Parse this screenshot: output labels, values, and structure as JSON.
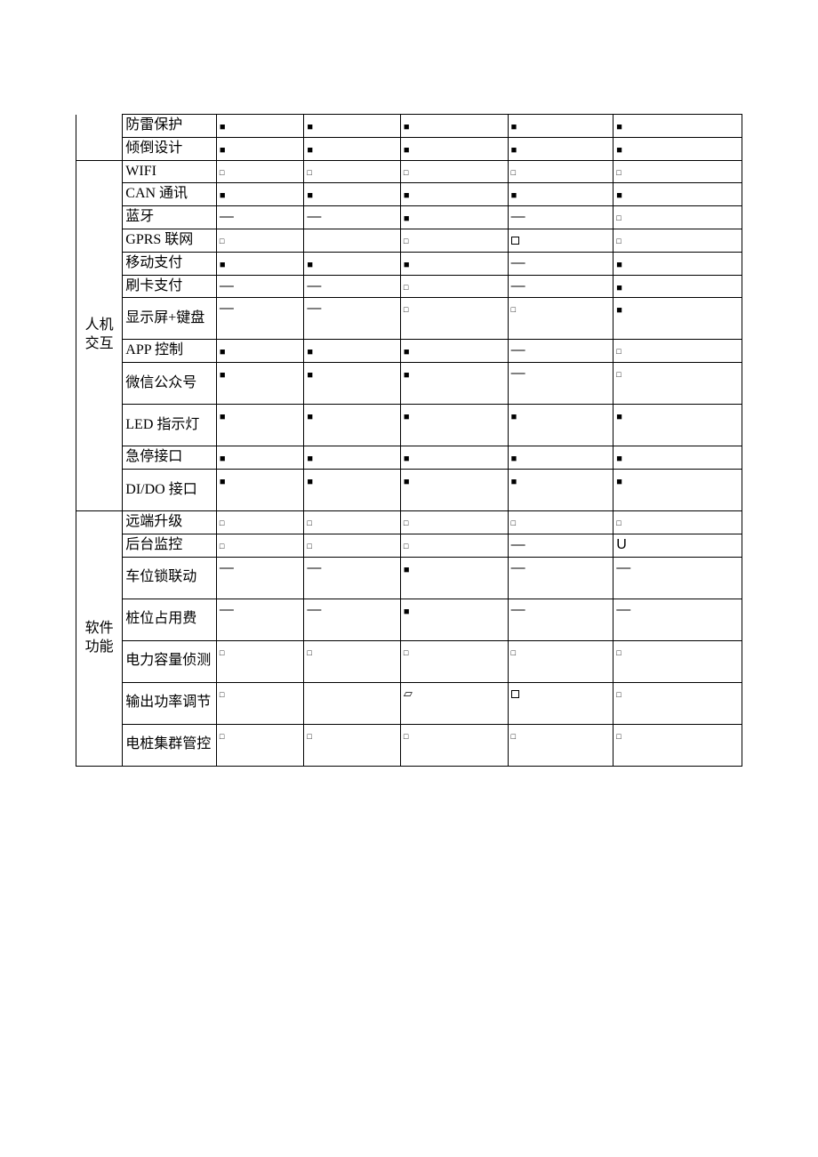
{
  "columns": {
    "cat": 52,
    "label": 105,
    "c1": 98,
    "c2": 108,
    "c3": 120,
    "c4": 118,
    "c5": 144
  },
  "symbols": {
    "filled": "■",
    "hollow": "□",
    "dash": "—",
    "U": "U",
    "skew": "▱"
  },
  "top_orphan": {
    "rows": [
      {
        "label": "防雷保护",
        "cells": [
          "filled",
          "filled",
          "filled",
          "filled",
          "filled"
        ]
      },
      {
        "label": "倾倒设计",
        "cells": [
          "filled",
          "filled",
          "filled",
          "filled",
          "filled"
        ]
      }
    ]
  },
  "groups": [
    {
      "title": "人机交互",
      "rows": [
        {
          "label": "WIFI",
          "cells": [
            "hollow",
            "hollow",
            "hollow",
            "hollow",
            "hollow"
          ]
        },
        {
          "label": "CAN 通讯",
          "cells": [
            "filled",
            "filled",
            "filled",
            "filled",
            "filled"
          ]
        },
        {
          "label": "蓝牙",
          "cells": [
            "dash",
            "dash",
            "filled",
            "dash",
            "hollow"
          ]
        },
        {
          "label": "GPRS 联网",
          "cells": [
            "hollow",
            "",
            "hollow",
            "big-hollow",
            "hollow"
          ]
        },
        {
          "label": "移动支付",
          "cells": [
            "filled",
            "filled",
            "filled",
            "dash",
            "filled"
          ]
        },
        {
          "label": "刷卡支付",
          "cells": [
            "dash",
            "dash",
            "hollow",
            "dash",
            "filled"
          ]
        },
        {
          "label": "显示屏+键盘",
          "tall": true,
          "cells": [
            "dash",
            "dash",
            "hollow",
            "hollow",
            "filled"
          ],
          "valign": "top"
        },
        {
          "label": "APP 控制",
          "cells": [
            "filled",
            "filled",
            "filled",
            "dash",
            "hollow"
          ]
        },
        {
          "label": "微信公众号",
          "tall": true,
          "cells": [
            "filled",
            "filled",
            "filled",
            "dash",
            "hollow"
          ],
          "valign": "top"
        },
        {
          "label": "LED 指示灯",
          "tall": true,
          "cells": [
            "filled",
            "filled",
            "filled",
            "filled",
            "filled"
          ],
          "valign": "top"
        },
        {
          "label": "急停接口",
          "cells": [
            "filled",
            "filled",
            "filled",
            "filled",
            "filled"
          ]
        },
        {
          "label": "DI/DO 接口",
          "tall": true,
          "cells": [
            "filled",
            "filled",
            "filled",
            "filled",
            "filled"
          ],
          "valign": "top"
        }
      ]
    },
    {
      "title": "软件功能",
      "rows": [
        {
          "label": "远端升级",
          "cells": [
            "hollow",
            "hollow",
            "hollow",
            "hollow",
            "hollow"
          ]
        },
        {
          "label": "后台监控",
          "cells": [
            "hollow",
            "hollow",
            "hollow",
            "dash",
            "U"
          ]
        },
        {
          "label": "车位锁联动",
          "tall": true,
          "cells": [
            "dash",
            "dash",
            "filled",
            "dash",
            "dash"
          ],
          "valign": "top"
        },
        {
          "label": "桩位占用费",
          "tall": true,
          "cells": [
            "dash",
            "dash",
            "filled",
            "dash",
            "dash"
          ],
          "valign": "top"
        },
        {
          "label": "电力容量侦测",
          "tall": true,
          "cells": [
            "hollow",
            "hollow",
            "hollow",
            "hollow",
            "hollow"
          ],
          "valign": "top"
        },
        {
          "label": "输出功率调节",
          "tall": true,
          "cells": [
            "hollow",
            "",
            "skew",
            "big-hollow",
            "hollow"
          ],
          "valign": "top"
        },
        {
          "label": "电桩集群管控",
          "tall": true,
          "cells": [
            "hollow",
            "hollow",
            "hollow",
            "hollow",
            "hollow"
          ],
          "valign": "top"
        }
      ]
    }
  ]
}
